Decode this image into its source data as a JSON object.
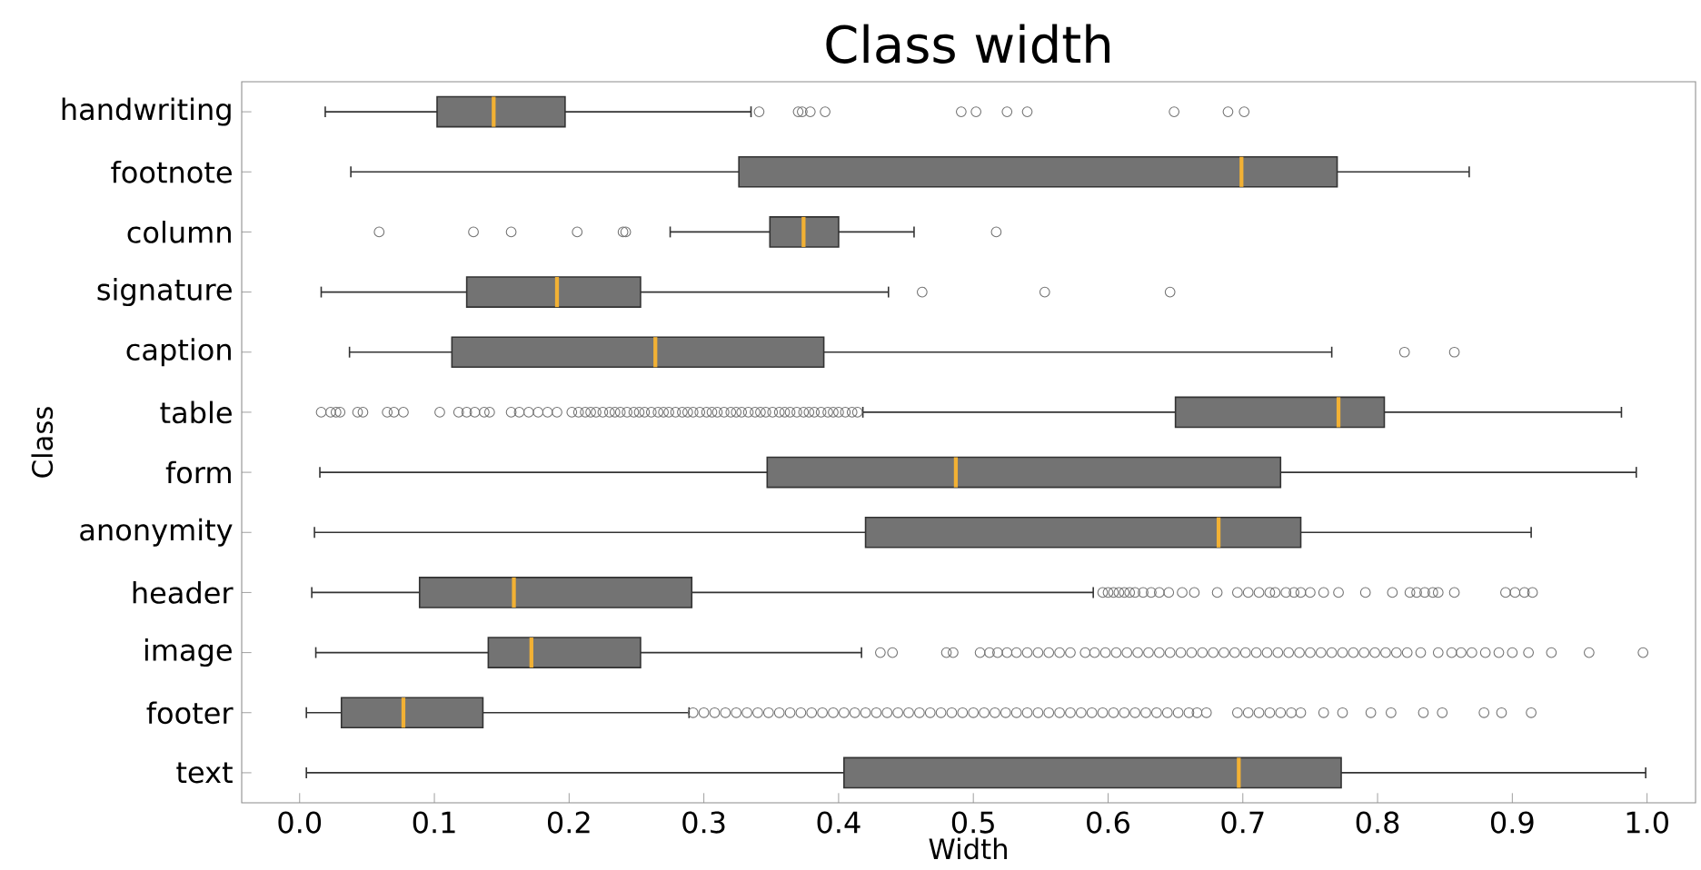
{
  "chart_data": {
    "type": "box",
    "title": "Class width",
    "xlabel": "Width",
    "ylabel": "Class",
    "orientation": "horizontal",
    "categories": [
      "handwriting",
      "footnote",
      "column",
      "signature",
      "caption",
      "table",
      "form",
      "anonymity",
      "header",
      "image",
      "footer",
      "text"
    ],
    "color": "#737373",
    "xlim": [
      -0.043,
      1.036
    ],
    "xticks": [
      {
        "value": 0,
        "label": "0.0"
      },
      {
        "value": 0.1,
        "label": "0.1"
      },
      {
        "value": 0.2,
        "label": "0.2"
      },
      {
        "value": 0.3,
        "label": "0.3"
      },
      {
        "value": 0.4,
        "label": "0.4"
      },
      {
        "value": 0.5,
        "label": "0.5"
      },
      {
        "value": 0.6,
        "label": "0.6"
      },
      {
        "value": 0.7,
        "label": "0.7"
      },
      {
        "value": 0.8,
        "label": "0.8"
      },
      {
        "value": 0.9,
        "label": "0.9"
      },
      {
        "value": 1,
        "label": "1.0"
      }
    ],
    "boxes": [
      {
        "low": 0.019,
        "q1": 0.102,
        "median": 0.144,
        "q3": 0.197,
        "high": 0.335,
        "outliers": [
          0.341,
          0.37,
          0.373,
          0.379,
          0.39,
          0.491,
          0.502,
          0.525,
          0.54,
          0.649,
          0.689,
          0.701
        ]
      },
      {
        "low": 0.038,
        "q1": 0.326,
        "median": 0.699,
        "q3": 0.77,
        "high": 0.868
      },
      {
        "low": 0.275,
        "q1": 0.349,
        "median": 0.374,
        "q3": 0.4,
        "high": 0.456,
        "outliers": [
          0.059,
          0.129,
          0.157,
          0.206,
          0.24,
          0.242,
          0.517
        ]
      },
      {
        "low": 0.016,
        "q1": 0.124,
        "median": 0.191,
        "q3": 0.253,
        "high": 0.437,
        "outliers": [
          0.462,
          0.553,
          0.646
        ]
      },
      {
        "low": 0.037,
        "q1": 0.113,
        "median": 0.264,
        "q3": 0.389,
        "high": 0.766,
        "outliers": [
          0.82,
          0.857
        ]
      },
      {
        "low": 0.418,
        "q1": 0.65,
        "median": 0.771,
        "q3": 0.805,
        "high": 0.981,
        "outliers": [
          0.016,
          0.023,
          0.027,
          0.03,
          0.043,
          0.047,
          0.065,
          0.07,
          0.077,
          0.104,
          0.118,
          0.124,
          0.13,
          0.137,
          0.141,
          0.157,
          0.163,
          0.17,
          0.177,
          0.184,
          0.191,
          0.202,
          0.207,
          0.212,
          0.216,
          0.22,
          0.225,
          0.23,
          0.234,
          0.238,
          0.243,
          0.248,
          0.252,
          0.256,
          0.261,
          0.266,
          0.27,
          0.274,
          0.279,
          0.284,
          0.288,
          0.292,
          0.297,
          0.302,
          0.306,
          0.31,
          0.315,
          0.32,
          0.324,
          0.328,
          0.333,
          0.338,
          0.342,
          0.346,
          0.351,
          0.356,
          0.36,
          0.364,
          0.369,
          0.374,
          0.378,
          0.382,
          0.387,
          0.392,
          0.396,
          0.4,
          0.405,
          0.41,
          0.414
        ]
      },
      {
        "low": 0.015,
        "q1": 0.347,
        "median": 0.487,
        "q3": 0.728,
        "high": 0.992
      },
      {
        "low": 0.011,
        "q1": 0.42,
        "median": 0.682,
        "q3": 0.743,
        "high": 0.914
      },
      {
        "low": 0.009,
        "q1": 0.089,
        "median": 0.159,
        "q3": 0.291,
        "high": 0.589,
        "outliers": [
          0.596,
          0.6,
          0.604,
          0.608,
          0.612,
          0.616,
          0.62,
          0.626,
          0.632,
          0.638,
          0.645,
          0.655,
          0.664,
          0.681,
          0.696,
          0.704,
          0.712,
          0.72,
          0.724,
          0.732,
          0.738,
          0.743,
          0.75,
          0.76,
          0.771,
          0.791,
          0.811,
          0.824,
          0.829,
          0.835,
          0.841,
          0.845,
          0.857,
          0.895,
          0.902,
          0.909,
          0.915
        ]
      },
      {
        "low": 0.012,
        "q1": 0.14,
        "median": 0.172,
        "q3": 0.253,
        "high": 0.417,
        "outliers": [
          0.431,
          0.44,
          0.48,
          0.485,
          0.505,
          0.512,
          0.518,
          0.525,
          0.532,
          0.54,
          0.548,
          0.556,
          0.564,
          0.572,
          0.583,
          0.59,
          0.598,
          0.606,
          0.614,
          0.622,
          0.63,
          0.638,
          0.646,
          0.654,
          0.662,
          0.67,
          0.678,
          0.686,
          0.694,
          0.702,
          0.71,
          0.718,
          0.726,
          0.734,
          0.742,
          0.75,
          0.758,
          0.766,
          0.774,
          0.782,
          0.79,
          0.798,
          0.806,
          0.814,
          0.822,
          0.832,
          0.845,
          0.855,
          0.862,
          0.87,
          0.88,
          0.89,
          0.9,
          0.912,
          0.929,
          0.957,
          0.997
        ]
      },
      {
        "low": 0.005,
        "q1": 0.031,
        "median": 0.077,
        "q3": 0.136,
        "high": 0.289,
        "outliers": [
          0.292,
          0.3,
          0.308,
          0.316,
          0.324,
          0.332,
          0.34,
          0.348,
          0.356,
          0.364,
          0.372,
          0.38,
          0.388,
          0.396,
          0.404,
          0.412,
          0.42,
          0.428,
          0.436,
          0.444,
          0.452,
          0.46,
          0.468,
          0.476,
          0.484,
          0.492,
          0.5,
          0.508,
          0.516,
          0.524,
          0.532,
          0.54,
          0.548,
          0.556,
          0.564,
          0.572,
          0.58,
          0.588,
          0.596,
          0.604,
          0.612,
          0.62,
          0.628,
          0.636,
          0.644,
          0.652,
          0.66,
          0.666,
          0.673,
          0.696,
          0.704,
          0.712,
          0.72,
          0.728,
          0.736,
          0.743,
          0.76,
          0.774,
          0.795,
          0.81,
          0.834,
          0.848,
          0.879,
          0.892,
          0.914
        ]
      },
      {
        "low": 0.005,
        "q1": 0.404,
        "median": 0.697,
        "q3": 0.773,
        "high": 0.999
      }
    ]
  }
}
